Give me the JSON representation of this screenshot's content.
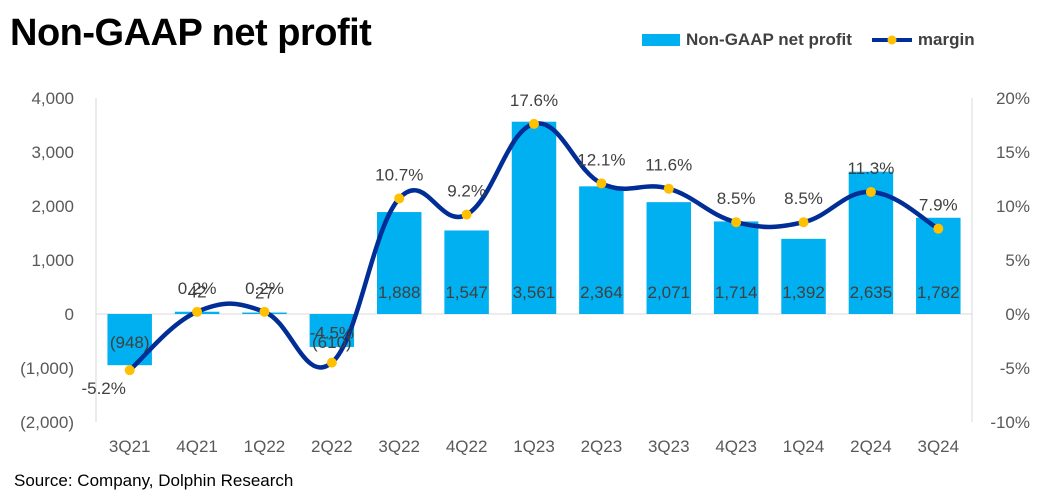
{
  "title": "Non-GAAP net profit",
  "source": "Source: Company, Dolphin Research",
  "colors": {
    "bar": "#00b0f0",
    "line": "#002d96",
    "marker": "#ffc000"
  },
  "chart_data": {
    "type": "bar+line",
    "categories": [
      "3Q21",
      "4Q21",
      "1Q22",
      "2Q22",
      "3Q22",
      "4Q22",
      "1Q23",
      "2Q23",
      "3Q23",
      "4Q23",
      "1Q24",
      "2Q24",
      "3Q24"
    ],
    "series": [
      {
        "name": "Non-GAAP net profit",
        "type": "bar",
        "axis": "left",
        "values": [
          -948,
          42,
          27,
          -610,
          1888,
          1547,
          3561,
          2364,
          2071,
          1714,
          1392,
          2635,
          1782
        ],
        "labels": [
          "(948)",
          "42",
          "27",
          "(610)",
          "1,888",
          "1,547",
          "3,561",
          "2,364",
          "2,071",
          "1,714",
          "1,392",
          "2,635",
          "1,782"
        ]
      },
      {
        "name": "margin",
        "type": "line",
        "axis": "right",
        "values": [
          -5.2,
          0.2,
          0.2,
          -4.5,
          10.7,
          9.2,
          17.6,
          12.1,
          11.6,
          8.5,
          8.5,
          11.3,
          7.9
        ],
        "labels": [
          "-5.2%",
          "0.2%",
          "0.2%",
          "-4.5%",
          "10.7%",
          "9.2%",
          "17.6%",
          "12.1%",
          "11.6%",
          "8.5%",
          "8.5%",
          "11.3%",
          "7.9%"
        ]
      }
    ],
    "y_left": {
      "range": [
        -2000,
        4000
      ],
      "ticks": [
        "(2,000)",
        "(1,000)",
        "0",
        "1,000",
        "2,000",
        "3,000",
        "4,000"
      ]
    },
    "y_right": {
      "range": [
        -10,
        20
      ],
      "ticks": [
        "-10%",
        "-5%",
        "0%",
        "5%",
        "10%",
        "15%",
        "20%"
      ]
    },
    "grid": false,
    "legend_position": "top-right"
  }
}
